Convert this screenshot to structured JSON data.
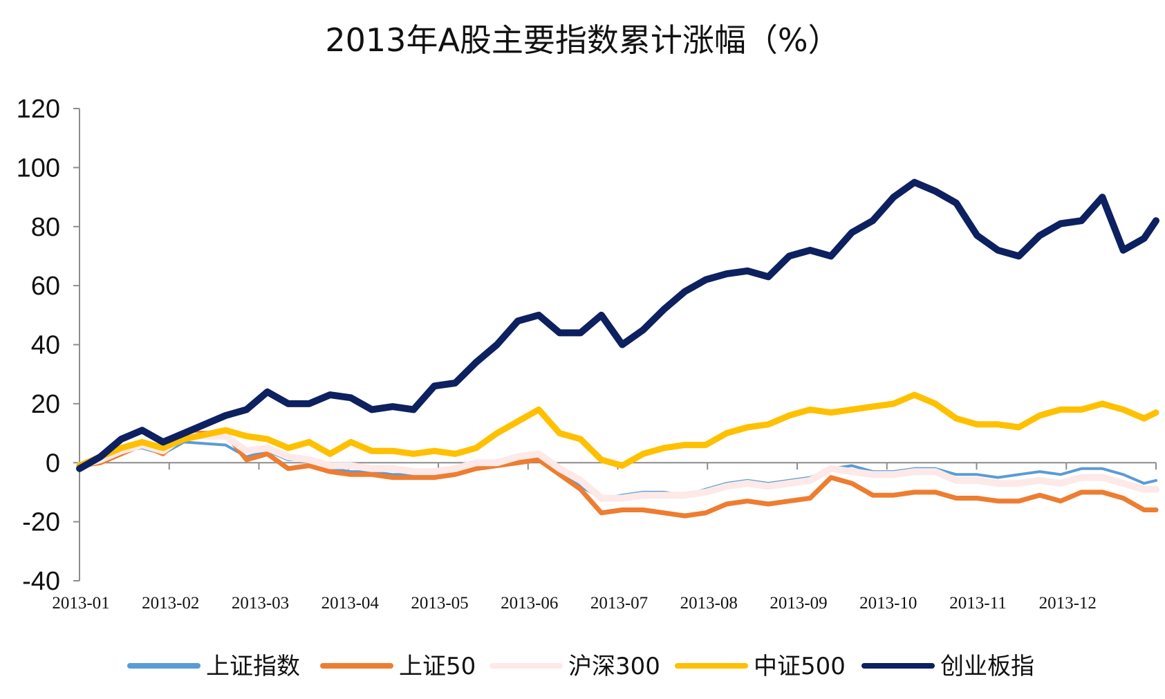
{
  "chart_data": {
    "type": "line",
    "title": "2013年A股主要指数累计涨幅（%）",
    "xlabel": "",
    "ylabel": "",
    "ylim": [
      -40,
      120
    ],
    "yticks": [
      "120",
      "100",
      "80",
      "60",
      "40",
      "20",
      "0",
      "-20",
      "-40"
    ],
    "x_ticks": [
      "2013-01",
      "2013-02",
      "2013-03",
      "2013-04",
      "2013-05",
      "2013-06",
      "2013-07",
      "2013-08",
      "2013-09",
      "2013-10",
      "2013-11",
      "2013-12"
    ],
    "legend_position": "bottom",
    "grid": false,
    "x": [
      "2013-01-04",
      "2013-01-11",
      "2013-01-18",
      "2013-01-25",
      "2013-02-01",
      "2013-02-08",
      "2013-02-22",
      "2013-03-01",
      "2013-03-08",
      "2013-03-15",
      "2013-03-22",
      "2013-03-29",
      "2013-04-05",
      "2013-04-12",
      "2013-04-19",
      "2013-04-26",
      "2013-05-03",
      "2013-05-10",
      "2013-05-17",
      "2013-05-24",
      "2013-05-31",
      "2013-06-07",
      "2013-06-14",
      "2013-06-21",
      "2013-06-28",
      "2013-07-05",
      "2013-07-12",
      "2013-07-19",
      "2013-07-26",
      "2013-08-02",
      "2013-08-09",
      "2013-08-16",
      "2013-08-23",
      "2013-08-30",
      "2013-09-06",
      "2013-09-13",
      "2013-09-20",
      "2013-09-27",
      "2013-10-04",
      "2013-10-11",
      "2013-10-18",
      "2013-10-25",
      "2013-11-01",
      "2013-11-08",
      "2013-11-15",
      "2013-11-22",
      "2013-11-29",
      "2013-12-06",
      "2013-12-13",
      "2013-12-20",
      "2013-12-27",
      "2013-12-31"
    ],
    "series": [
      {
        "name": "上证指数",
        "color": "#5b9bd5",
        "width": 4,
        "values": [
          -1,
          0,
          4,
          5,
          3,
          7,
          6,
          2,
          4,
          1,
          1,
          -2,
          -3,
          -3,
          -4,
          -4,
          -4,
          -3,
          -2,
          -1,
          1,
          2,
          -3,
          -8,
          -12,
          -11,
          -10,
          -10,
          -11,
          -9,
          -7,
          -6,
          -7,
          -6,
          -5,
          -2,
          -1,
          -3,
          -3,
          -2,
          -2,
          -4,
          -4,
          -5,
          -4,
          -3,
          -4,
          -2,
          -2,
          -4,
          -7,
          -6
        ]
      },
      {
        "name": "上证50",
        "color": "#ed7d31",
        "width": 7,
        "values": [
          -1,
          0,
          3,
          6,
          3,
          10,
          10,
          1,
          3,
          -2,
          -1,
          -3,
          -4,
          -4,
          -5,
          -5,
          -5,
          -4,
          -2,
          -1,
          0,
          1,
          -4,
          -9,
          -17,
          -16,
          -16,
          -17,
          -18,
          -17,
          -14,
          -13,
          -14,
          -13,
          -12,
          -5,
          -7,
          -11,
          -11,
          -10,
          -10,
          -12,
          -12,
          -13,
          -13,
          -11,
          -13,
          -10,
          -10,
          -12,
          -16,
          -16
        ]
      },
      {
        "name": "沪深300",
        "color": "#fde9e7",
        "width": 10,
        "values": [
          -1,
          1,
          4,
          6,
          4,
          9,
          9,
          4,
          5,
          2,
          1,
          -1,
          -1,
          -2,
          -2,
          -3,
          -3,
          -2,
          0,
          0,
          2,
          3,
          -2,
          -6,
          -12,
          -12,
          -11,
          -11,
          -11,
          -10,
          -8,
          -7,
          -8,
          -7,
          -6,
          -2,
          -3,
          -4,
          -4,
          -3,
          -3,
          -6,
          -6,
          -7,
          -7,
          -6,
          -7,
          -5,
          -5,
          -7,
          -9,
          -9
        ]
      },
      {
        "name": "中证500",
        "color": "#ffc000",
        "width": 9,
        "values": [
          -1,
          2,
          5,
          7,
          5,
          8,
          11,
          9,
          8,
          5,
          7,
          3,
          7,
          4,
          4,
          3,
          4,
          3,
          5,
          10,
          14,
          18,
          10,
          8,
          1,
          -1,
          3,
          5,
          6,
          6,
          10,
          12,
          13,
          16,
          18,
          17,
          18,
          19,
          20,
          23,
          20,
          15,
          13,
          13,
          12,
          16,
          18,
          18,
          20,
          18,
          15,
          17
        ]
      },
      {
        "name": "创业板指",
        "color": "#0d2060",
        "width": 10,
        "values": [
          -2,
          2,
          8,
          11,
          7,
          10,
          16,
          18,
          24,
          20,
          20,
          23,
          22,
          18,
          19,
          18,
          26,
          27,
          34,
          40,
          48,
          50,
          44,
          44,
          50,
          40,
          45,
          52,
          58,
          62,
          64,
          65,
          63,
          70,
          72,
          70,
          78,
          82,
          90,
          95,
          92,
          88,
          77,
          72,
          70,
          77,
          81,
          82,
          90,
          72,
          76,
          82
        ]
      }
    ]
  }
}
